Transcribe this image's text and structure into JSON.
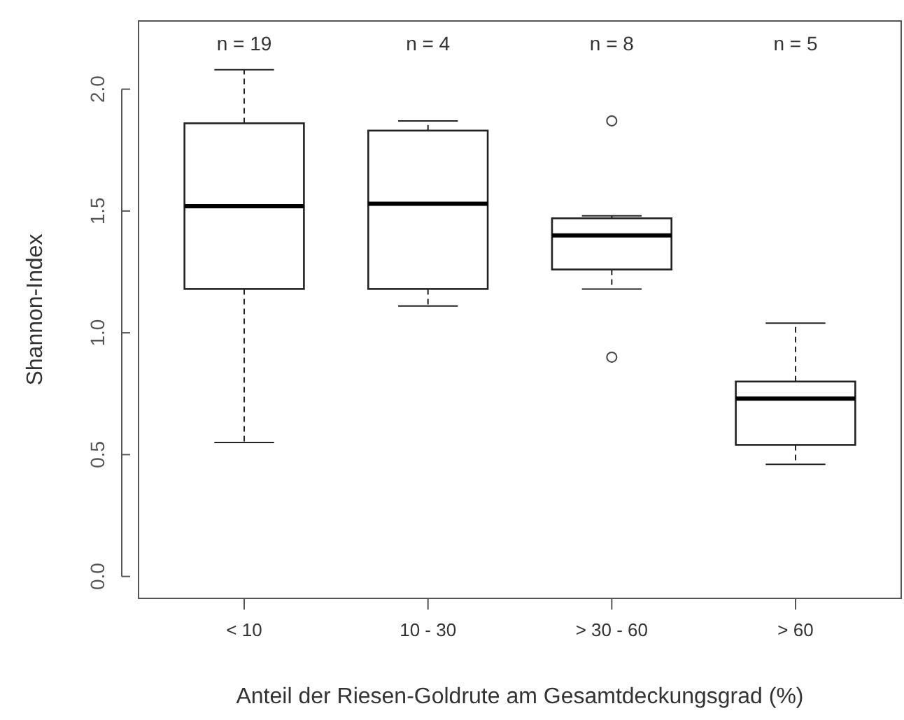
{
  "chart_data": {
    "type": "box",
    "xlabel": "Anteil der Riesen-Goldrute am Gesamtdeckungsgrad (%)",
    "ylabel": "Shannon-Index",
    "categories": [
      "< 10",
      "10 - 30",
      "> 30 - 60",
      "> 60"
    ],
    "boxes": [
      {
        "low": 0.55,
        "q1": 1.18,
        "median": 1.52,
        "q3": 1.86,
        "high": 2.08
      },
      {
        "low": 1.11,
        "q1": 1.18,
        "median": 1.53,
        "q3": 1.83,
        "high": 1.87
      },
      {
        "low": 1.18,
        "q1": 1.26,
        "median": 1.4,
        "q3": 1.47,
        "high": 1.48,
        "outliers": [
          1.87,
          0.9
        ]
      },
      {
        "low": 0.46,
        "q1": 0.54,
        "median": 0.73,
        "q3": 0.8,
        "high": 1.04
      }
    ],
    "ylim": [
      -0.09,
      2.28
    ],
    "yticks": [
      {
        "value": 0,
        "label": "0.0"
      },
      {
        "value": 0.5,
        "label": "0.5"
      },
      {
        "value": 1,
        "label": "1.0"
      },
      {
        "value": 1.5,
        "label": "1.5"
      },
      {
        "value": 2,
        "label": "2.0"
      }
    ],
    "annotations": [
      "n = 19",
      "n = 4",
      "n = 8",
      "n = 5"
    ]
  }
}
